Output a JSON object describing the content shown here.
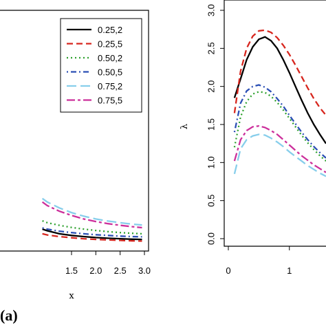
{
  "panel_label": "(a)",
  "chart_data": [
    {
      "type": "line",
      "xlabel": "x",
      "ylabel": "",
      "xlim": [
        0,
        3.0
      ],
      "x_ticks": [
        "1.5",
        "2.0",
        "2.5",
        "3.0"
      ],
      "x_tick_values": [
        1.5,
        2.0,
        2.5,
        3.0
      ],
      "y_ticks": [],
      "ylim": [
        0,
        1
      ],
      "legend": "top-right",
      "series": [
        {
          "name": "0.25,2",
          "color": "#000000",
          "dash": "solid",
          "x": [
            0.9,
            1.0,
            1.25,
            1.5,
            1.75,
            2.0,
            2.25,
            2.5,
            2.75,
            2.95
          ],
          "y": [
            0.07,
            0.063,
            0.05,
            0.043,
            0.038,
            0.034,
            0.031,
            0.029,
            0.027,
            0.026
          ]
        },
        {
          "name": "0.25,5",
          "color": "#d7261e",
          "dash": "dashed",
          "x": [
            0.9,
            1.0,
            1.25,
            1.5,
            1.75,
            2.0,
            2.25,
            2.5,
            2.75,
            2.95
          ],
          "y": [
            0.05,
            0.045,
            0.038,
            0.033,
            0.029,
            0.026,
            0.024,
            0.022,
            0.02,
            0.019
          ]
        },
        {
          "name": "0.50,2",
          "color": "#2ca02c",
          "dash": "dotted",
          "x": [
            0.9,
            1.0,
            1.25,
            1.5,
            1.75,
            2.0,
            2.25,
            2.5,
            2.75,
            2.95
          ],
          "y": [
            0.105,
            0.097,
            0.086,
            0.077,
            0.07,
            0.064,
            0.059,
            0.055,
            0.052,
            0.05
          ]
        },
        {
          "name": "0.50,5",
          "color": "#2b4fb5",
          "dash": "dashdot",
          "x": [
            0.9,
            1.0,
            1.25,
            1.5,
            1.75,
            2.0,
            2.25,
            2.5,
            2.75,
            2.95
          ],
          "y": [
            0.075,
            0.07,
            0.061,
            0.055,
            0.05,
            0.046,
            0.043,
            0.04,
            0.038,
            0.037
          ]
        },
        {
          "name": "0.75,2",
          "color": "#87ceeb",
          "dash": "longdash",
          "x": [
            0.9,
            1.0,
            1.25,
            1.5,
            1.75,
            2.0,
            2.25,
            2.5,
            2.75,
            2.95
          ],
          "y": [
            0.2,
            0.185,
            0.16,
            0.14,
            0.125,
            0.113,
            0.104,
            0.097,
            0.091,
            0.087
          ]
        },
        {
          "name": "0.75,5",
          "color": "#cc2f9b",
          "dash": "twodash",
          "x": [
            0.9,
            1.0,
            1.25,
            1.5,
            1.75,
            2.0,
            2.25,
            2.5,
            2.75,
            2.95
          ],
          "y": [
            0.185,
            0.17,
            0.146,
            0.128,
            0.113,
            0.102,
            0.093,
            0.086,
            0.08,
            0.076
          ]
        }
      ]
    },
    {
      "type": "line",
      "xlabel": "",
      "ylabel": "λ",
      "xlim": [
        0,
        1.6
      ],
      "ylim": [
        0,
        3.0
      ],
      "x_ticks": [
        "0",
        "1"
      ],
      "x_tick_values": [
        0,
        1
      ],
      "y_ticks": [
        "0.0",
        "0.5",
        "1.0",
        "1.5",
        "2.0",
        "2.5",
        "3.0"
      ],
      "y_tick_values": [
        0,
        0.5,
        1.0,
        1.5,
        2.0,
        2.5,
        3.0
      ],
      "series": [
        {
          "name": "0.25,2",
          "color": "#000000",
          "dash": "solid",
          "x": [
            0.1,
            0.2,
            0.3,
            0.4,
            0.5,
            0.6,
            0.7,
            0.8,
            0.9,
            1.0,
            1.1,
            1.2,
            1.3,
            1.4,
            1.5,
            1.6
          ],
          "y": [
            1.85,
            2.1,
            2.35,
            2.52,
            2.62,
            2.65,
            2.6,
            2.5,
            2.35,
            2.18,
            2.0,
            1.82,
            1.65,
            1.5,
            1.37,
            1.25
          ]
        },
        {
          "name": "0.25,5",
          "color": "#d7261e",
          "dash": "dashed",
          "x": [
            0.1,
            0.2,
            0.3,
            0.4,
            0.5,
            0.6,
            0.7,
            0.8,
            0.9,
            1.0,
            1.1,
            1.2,
            1.3,
            1.4,
            1.5,
            1.6
          ],
          "y": [
            1.65,
            2.2,
            2.5,
            2.66,
            2.73,
            2.74,
            2.71,
            2.64,
            2.54,
            2.42,
            2.28,
            2.13,
            1.98,
            1.84,
            1.72,
            1.62
          ]
        },
        {
          "name": "0.50,2",
          "color": "#2ca02c",
          "dash": "dotted",
          "x": [
            0.1,
            0.2,
            0.3,
            0.4,
            0.5,
            0.6,
            0.7,
            0.8,
            0.9,
            1.0,
            1.1,
            1.2,
            1.3,
            1.4,
            1.5,
            1.6
          ],
          "y": [
            1.2,
            1.6,
            1.8,
            1.9,
            1.93,
            1.92,
            1.87,
            1.79,
            1.69,
            1.58,
            1.47,
            1.36,
            1.26,
            1.17,
            1.09,
            1.02
          ]
        },
        {
          "name": "0.50,5",
          "color": "#2b4fb5",
          "dash": "dashdot",
          "x": [
            0.1,
            0.2,
            0.3,
            0.4,
            0.5,
            0.6,
            0.7,
            0.8,
            0.9,
            1.0,
            1.1,
            1.2,
            1.3,
            1.4,
            1.5,
            1.6
          ],
          "y": [
            1.4,
            1.78,
            1.94,
            2.0,
            2.02,
            1.99,
            1.93,
            1.84,
            1.74,
            1.62,
            1.51,
            1.4,
            1.3,
            1.21,
            1.13,
            1.06
          ]
        },
        {
          "name": "0.75,2",
          "color": "#87ceeb",
          "dash": "longdash",
          "x": [
            0.1,
            0.2,
            0.3,
            0.4,
            0.5,
            0.6,
            0.7,
            0.8,
            0.9,
            1.0,
            1.1,
            1.2,
            1.3,
            1.4,
            1.5,
            1.6
          ],
          "y": [
            0.85,
            1.18,
            1.3,
            1.35,
            1.37,
            1.36,
            1.32,
            1.27,
            1.21,
            1.14,
            1.08,
            1.02,
            0.96,
            0.91,
            0.86,
            0.82
          ]
        },
        {
          "name": "0.75,5",
          "color": "#cc2f9b",
          "dash": "twodash",
          "x": [
            0.1,
            0.2,
            0.3,
            0.4,
            0.5,
            0.6,
            0.7,
            0.8,
            0.9,
            1.0,
            1.1,
            1.2,
            1.3,
            1.4,
            1.5,
            1.6
          ],
          "y": [
            1.02,
            1.3,
            1.42,
            1.47,
            1.48,
            1.46,
            1.42,
            1.37,
            1.3,
            1.23,
            1.16,
            1.09,
            1.03,
            0.97,
            0.92,
            0.87
          ]
        }
      ]
    }
  ]
}
